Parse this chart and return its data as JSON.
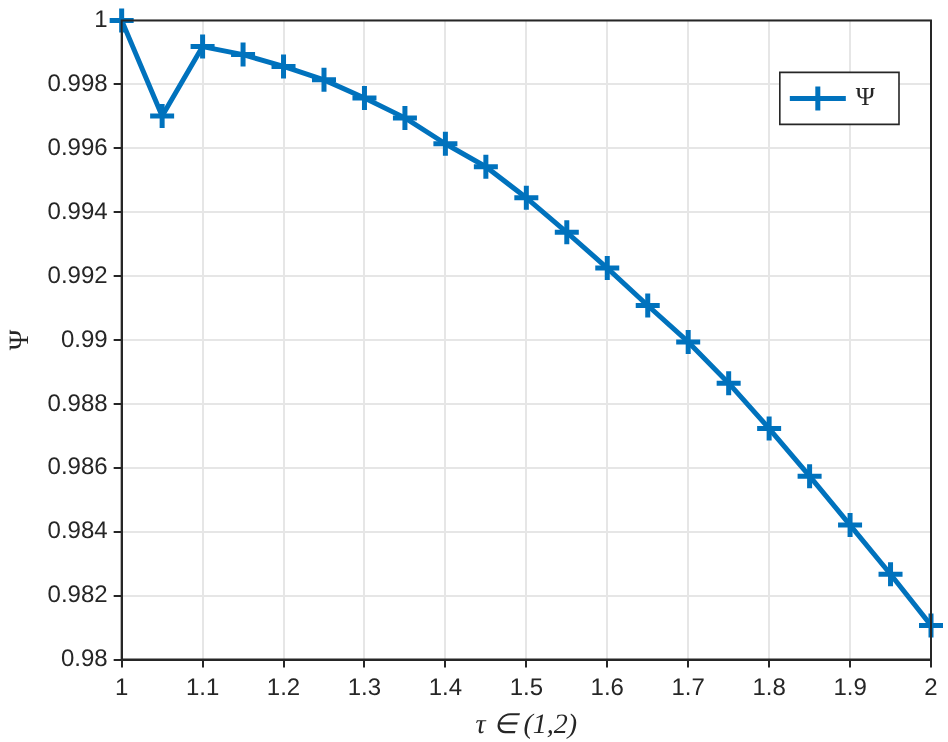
{
  "chart_data": {
    "type": "line",
    "xlabel": "τ ∈ (1,2)",
    "ylabel": "Ψ",
    "x": [
      1,
      1.05,
      1.1,
      1.15,
      1.2,
      1.25,
      1.3,
      1.35,
      1.4,
      1.45,
      1.5,
      1.55,
      1.6,
      1.65,
      1.7,
      1.75,
      1.8,
      1.85,
      1.9,
      1.95,
      2
    ],
    "series": [
      {
        "name": "Ψ",
        "color": "#0072bd",
        "values": [
          1,
          0.99701,
          0.99918,
          0.99893,
          0.99856,
          0.99814,
          0.99757,
          0.99695,
          0.99614,
          0.99542,
          0.99445,
          0.99337,
          0.99225,
          0.99108,
          0.98994,
          0.98865,
          0.98723,
          0.98574,
          0.98421,
          0.98267,
          0.98107
        ]
      }
    ],
    "xlim": [
      1,
      2
    ],
    "xticks": [
      1,
      1.1,
      1.2,
      1.3,
      1.4,
      1.5,
      1.6,
      1.7,
      1.8,
      1.9,
      2
    ],
    "ylim": [
      0.98,
      1
    ],
    "yticks": [
      0.98,
      0.982,
      0.984,
      0.986,
      0.988,
      0.99,
      0.992,
      0.994,
      0.996,
      0.998,
      1
    ],
    "grid": true,
    "legend": "top right",
    "marker": "cross",
    "line_style": "solid"
  }
}
